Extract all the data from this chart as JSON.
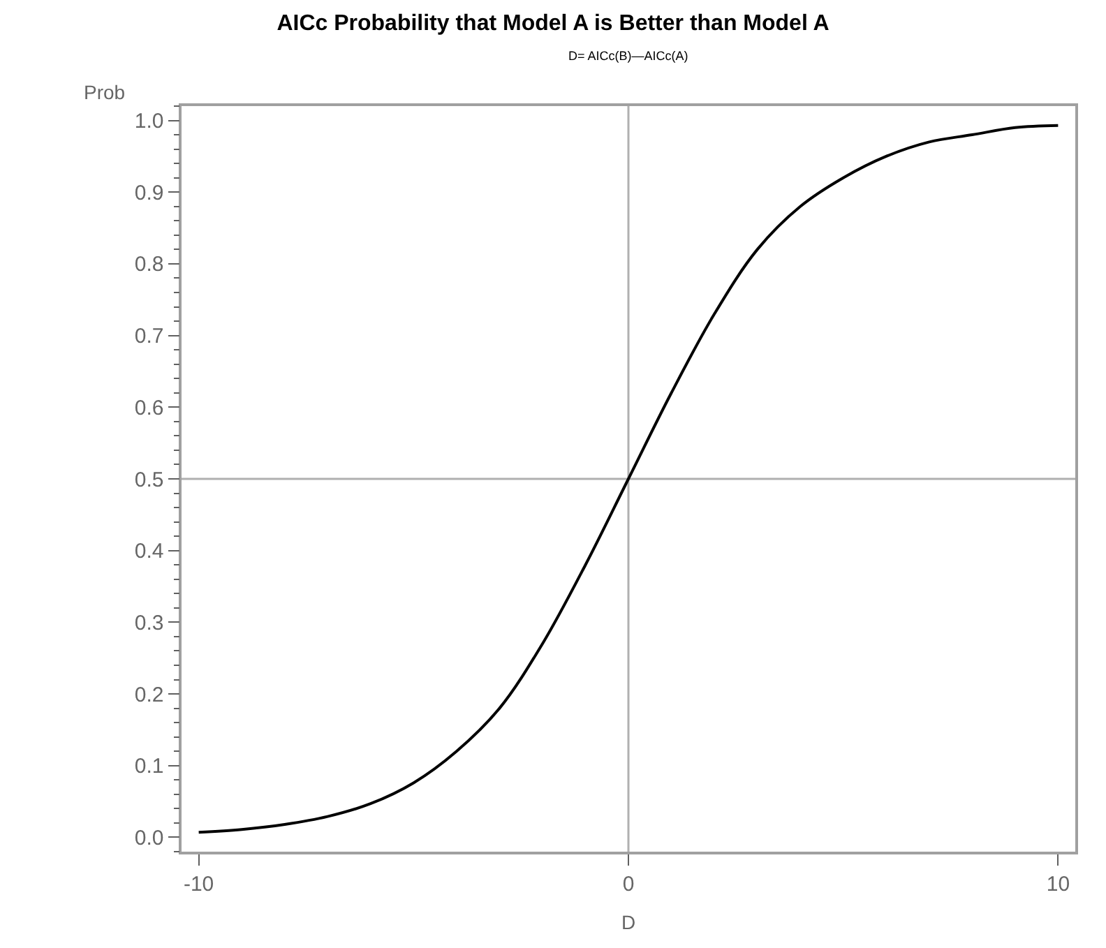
{
  "chart_data": {
    "type": "line",
    "title": "AICc Probability that Model A is Better than Model A",
    "subtitle": "D= AICc(B)—AICc(A)",
    "xlabel": "D",
    "ylabel": "Prob",
    "x": [
      -10,
      -9,
      -8,
      -7,
      -6,
      -5,
      -4,
      -3,
      -2,
      -1,
      0,
      1,
      2,
      3,
      4,
      5,
      6,
      7,
      8,
      9,
      10
    ],
    "series": [
      {
        "color": "#000000",
        "values": [
          0.007,
          0.011,
          0.018,
          0.029,
          0.047,
          0.076,
          0.12,
          0.18,
          0.27,
          0.38,
          0.5,
          0.62,
          0.73,
          0.82,
          0.88,
          0.92,
          0.95,
          0.97,
          0.98,
          0.99,
          0.993
        ]
      }
    ],
    "xlim": [
      -10.4,
      10.4
    ],
    "xticks": [
      -10,
      0,
      10
    ],
    "ylim": [
      -0.02,
      1.02
    ],
    "yticks": [
      {
        "value": 0,
        "label": "0.0"
      },
      0.1,
      0.2,
      0.3,
      0.4,
      0.5,
      0.6,
      0.7,
      0.8,
      0.9,
      {
        "value": 1,
        "label": "1.0"
      }
    ],
    "ref_lines": [
      {
        "axis": "x",
        "value": 0,
        "color": "#b0b0b0"
      },
      {
        "axis": "y",
        "value": 0.5,
        "color": "#b0b0b0"
      }
    ],
    "grid": false,
    "marker": "none",
    "line_style": "solid"
  }
}
